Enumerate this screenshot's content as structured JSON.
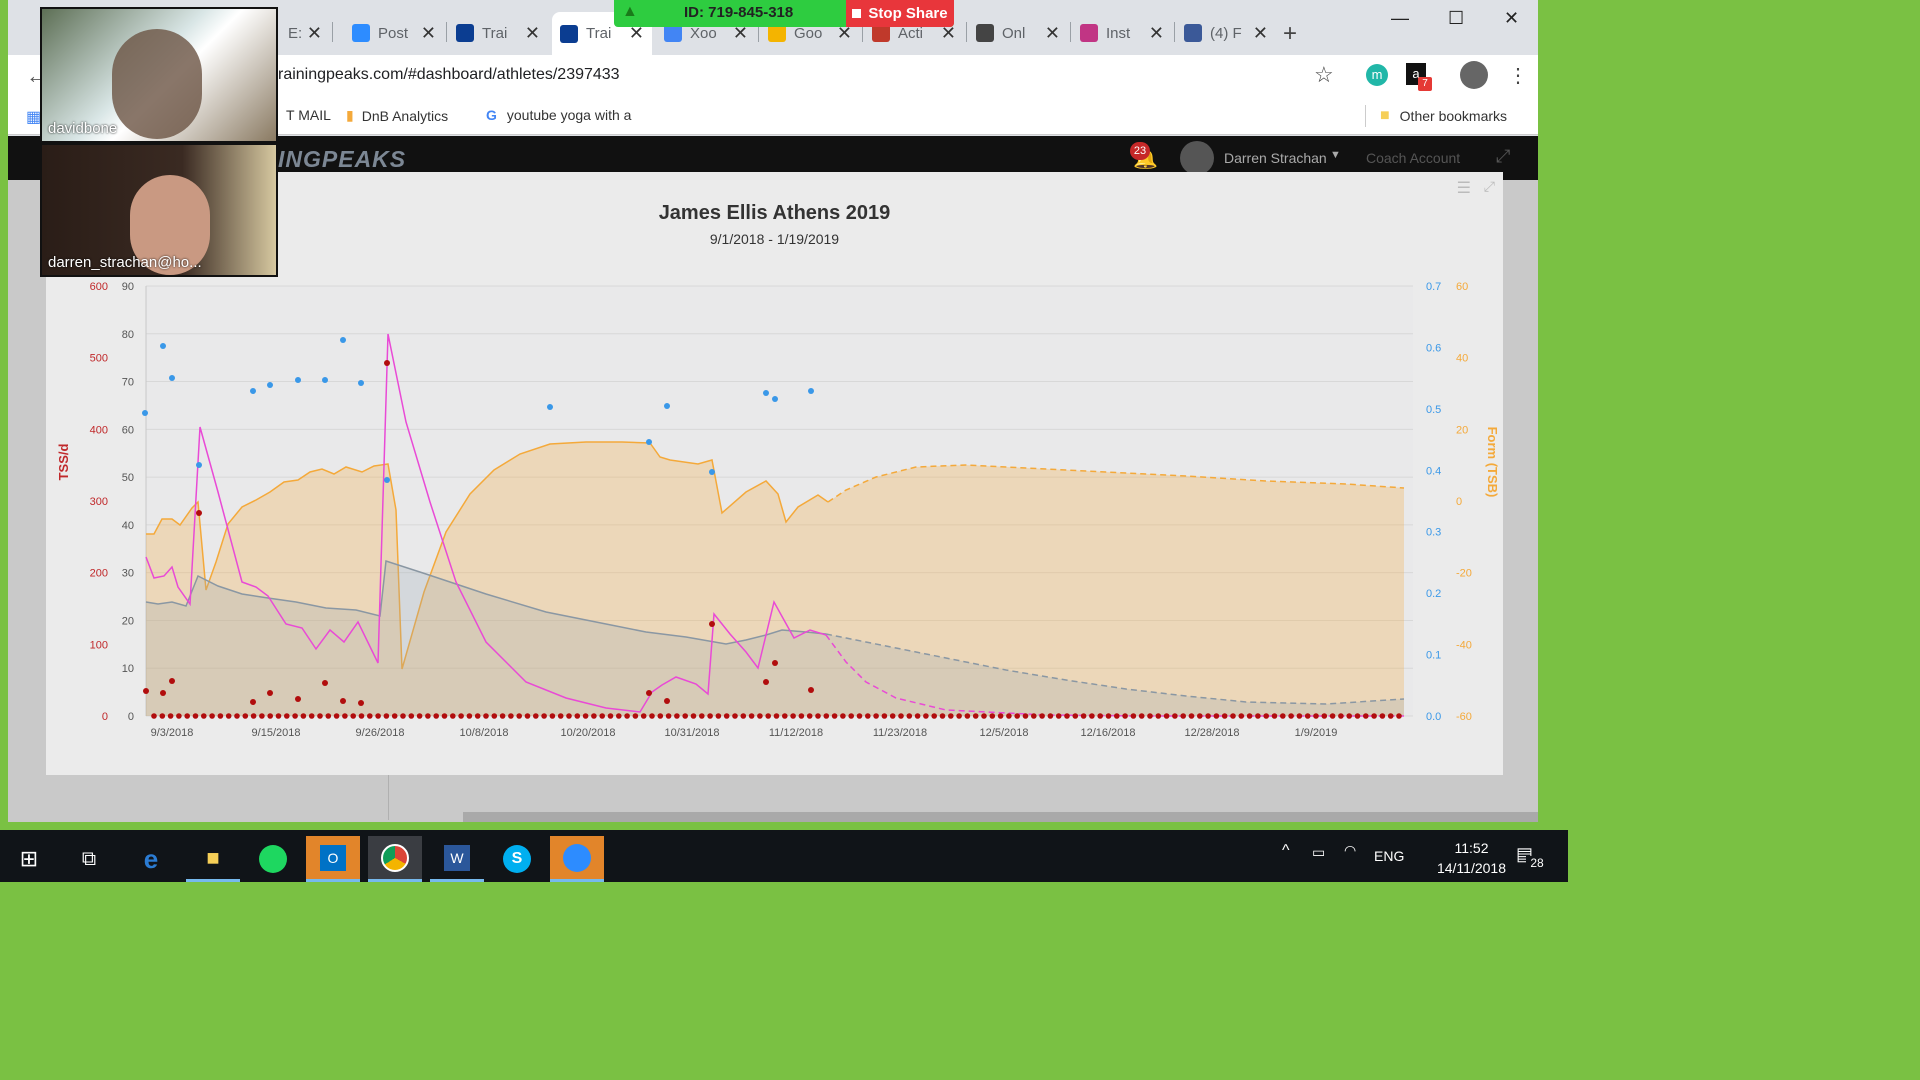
{
  "meeting": {
    "id_label": "ID: 719-845-318",
    "stop_share": "Stop Share",
    "participants": [
      {
        "name": "davidbone"
      },
      {
        "name": "darren_strachan@ho..."
      }
    ]
  },
  "browser": {
    "tabs": [
      {
        "label": "E:",
        "icon": "generic-icon",
        "color": "#888888"
      },
      {
        "label": "Post",
        "icon": "zoom-icon",
        "color": "#2d8cff"
      },
      {
        "label": "Trai",
        "icon": "trainingpeaks-icon",
        "color": "#0b3d91"
      },
      {
        "label": "Trai",
        "icon": "trainingpeaks-icon",
        "color": "#0b3d91"
      },
      {
        "label": "Xoo",
        "icon": "calendar-icon",
        "color": "#4285f4"
      },
      {
        "label": "Goo",
        "icon": "keep-icon",
        "color": "#f4b400"
      },
      {
        "label": "Acti",
        "icon": "notification-icon",
        "color": "#c0392b"
      },
      {
        "label": "Onl",
        "icon": "box-icon",
        "color": "#444444"
      },
      {
        "label": "Inst",
        "icon": "instagram-icon",
        "color": "#c13584"
      },
      {
        "label": "(4) F",
        "icon": "facebook-icon",
        "color": "#3b5998"
      }
    ],
    "url": "rainingpeaks.com/#dashboard/athletes/2397433",
    "bookmarks": [
      {
        "label": "T MAIL"
      },
      {
        "label": "DnB Analytics"
      },
      {
        "label": "youtube yoga with a"
      }
    ],
    "other_bookmarks": "Other bookmarks",
    "extension_badges": {
      "amazon": "7"
    }
  },
  "app": {
    "logo": "INGPEAKS",
    "notification_count": "23",
    "user_name": "Darren Strachan",
    "account_link": "Coach Account"
  },
  "chart_data": {
    "type": "line",
    "title": "James Ellis Athens 2019",
    "subtitle": "9/1/2018 - 1/19/2019",
    "left_axis_tss": {
      "label": "TSS/d",
      "ticks": [
        "600",
        "500",
        "400",
        "300",
        "200",
        "100",
        "0"
      ],
      "range": [
        0,
        600
      ]
    },
    "left_axis_if": {
      "ticks": [
        "90",
        "80",
        "70",
        "60",
        "50",
        "40",
        "30",
        "20",
        "10",
        "0"
      ],
      "range": [
        0,
        90
      ]
    },
    "right_axis_if": {
      "ticks": [
        "0.7",
        "0.6",
        "0.5",
        "0.4",
        "0.3",
        "0.2",
        "0.1",
        "0.0"
      ],
      "range": [
        0,
        0.7
      ]
    },
    "right_axis_tsb": {
      "label": "Form (TSB)",
      "ticks": [
        "60",
        "40",
        "20",
        "0",
        "-20",
        "-40",
        "-60"
      ],
      "range": [
        -60,
        60
      ]
    },
    "x_ticks": [
      "9/3/2018",
      "9/15/2018",
      "9/26/2018",
      "10/8/2018",
      "10/20/2018",
      "10/31/2018",
      "11/12/2018",
      "11/23/2018",
      "12/5/2018",
      "12/16/2018",
      "12/28/2018",
      "1/9/2019"
    ],
    "colors": {
      "fitness": "#8a97a3",
      "fatigue": "#e94ad6",
      "form": "#f4a93a",
      "tss_points": "#b10d0d",
      "if_points": "#3a98e8"
    }
  },
  "taskbar": {
    "time": "11:52",
    "date": "14/11/2018",
    "lang": "ENG",
    "notif_count": "28"
  }
}
